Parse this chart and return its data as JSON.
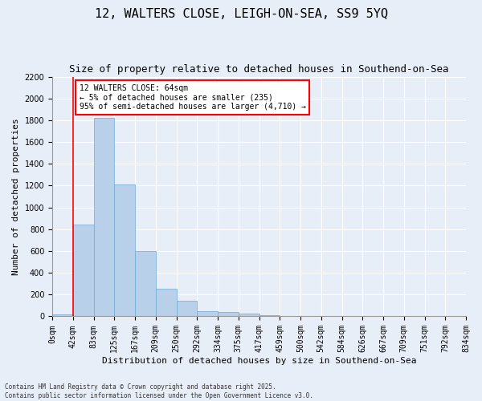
{
  "title": "12, WALTERS CLOSE, LEIGH-ON-SEA, SS9 5YQ",
  "subtitle": "Size of property relative to detached houses in Southend-on-Sea",
  "xlabel": "Distribution of detached houses by size in Southend-on-Sea",
  "ylabel": "Number of detached properties",
  "footer_line1": "Contains HM Land Registry data © Crown copyright and database right 2025.",
  "footer_line2": "Contains public sector information licensed under the Open Government Licence v3.0.",
  "annotation_title": "12 WALTERS CLOSE: 64sqm",
  "annotation_line2": "← 5% of detached houses are smaller (235)",
  "annotation_line3": "95% of semi-detached houses are larger (4,710) →",
  "bar_values": [
    20,
    845,
    1820,
    1210,
    600,
    255,
    140,
    45,
    38,
    28,
    10,
    0,
    0,
    0,
    0,
    0,
    0,
    0,
    0,
    0
  ],
  "bar_labels": [
    "0sqm",
    "42sqm",
    "83sqm",
    "125sqm",
    "167sqm",
    "209sqm",
    "250sqm",
    "292sqm",
    "334sqm",
    "375sqm",
    "417sqm",
    "459sqm",
    "500sqm",
    "542sqm",
    "584sqm",
    "626sqm",
    "667sqm",
    "709sqm",
    "751sqm",
    "792sqm",
    "834sqm"
  ],
  "bar_color": "#b8d0ea",
  "bar_edge_color": "#6aaad4",
  "vline_x": 1,
  "vline_color": "red",
  "ylim": [
    0,
    2200
  ],
  "yticks": [
    0,
    200,
    400,
    600,
    800,
    1000,
    1200,
    1400,
    1600,
    1800,
    2000,
    2200
  ],
  "background_color": "#e8eef8",
  "title_fontsize": 11,
  "subtitle_fontsize": 9,
  "ylabel_fontsize": 8,
  "xlabel_fontsize": 8,
  "annotation_box_color": "white",
  "annotation_box_edge_color": "red",
  "annotation_fontsize": 7,
  "tick_fontsize": 7,
  "footer_fontsize": 5.5
}
